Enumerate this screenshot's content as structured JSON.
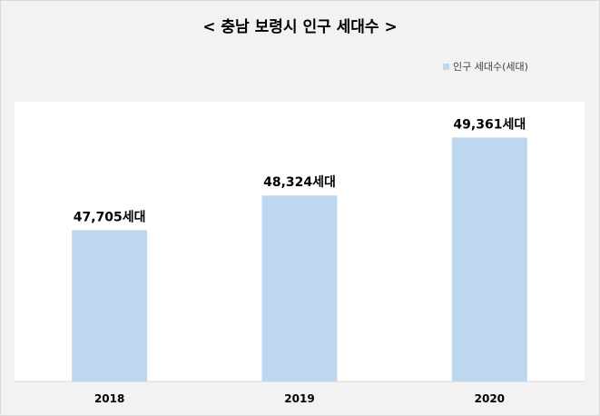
{
  "chart_data": {
    "type": "bar",
    "title": "< 충남 보령시 인구 세대수 >",
    "categories": [
      "2018",
      "2019",
      "2020"
    ],
    "series": [
      {
        "name": "인구 세대수(세대)",
        "values": [
          47705,
          48324,
          49361
        ],
        "data_labels": [
          "47,705세대",
          "48,324세대",
          "49,361세대"
        ],
        "color": "#bdd7ee"
      }
    ],
    "ylim": [
      45000,
      50000
    ],
    "grid": false,
    "legend_position": "top-right",
    "plot_background": "#ffffff",
    "chart_background": "#f2f2f2"
  }
}
